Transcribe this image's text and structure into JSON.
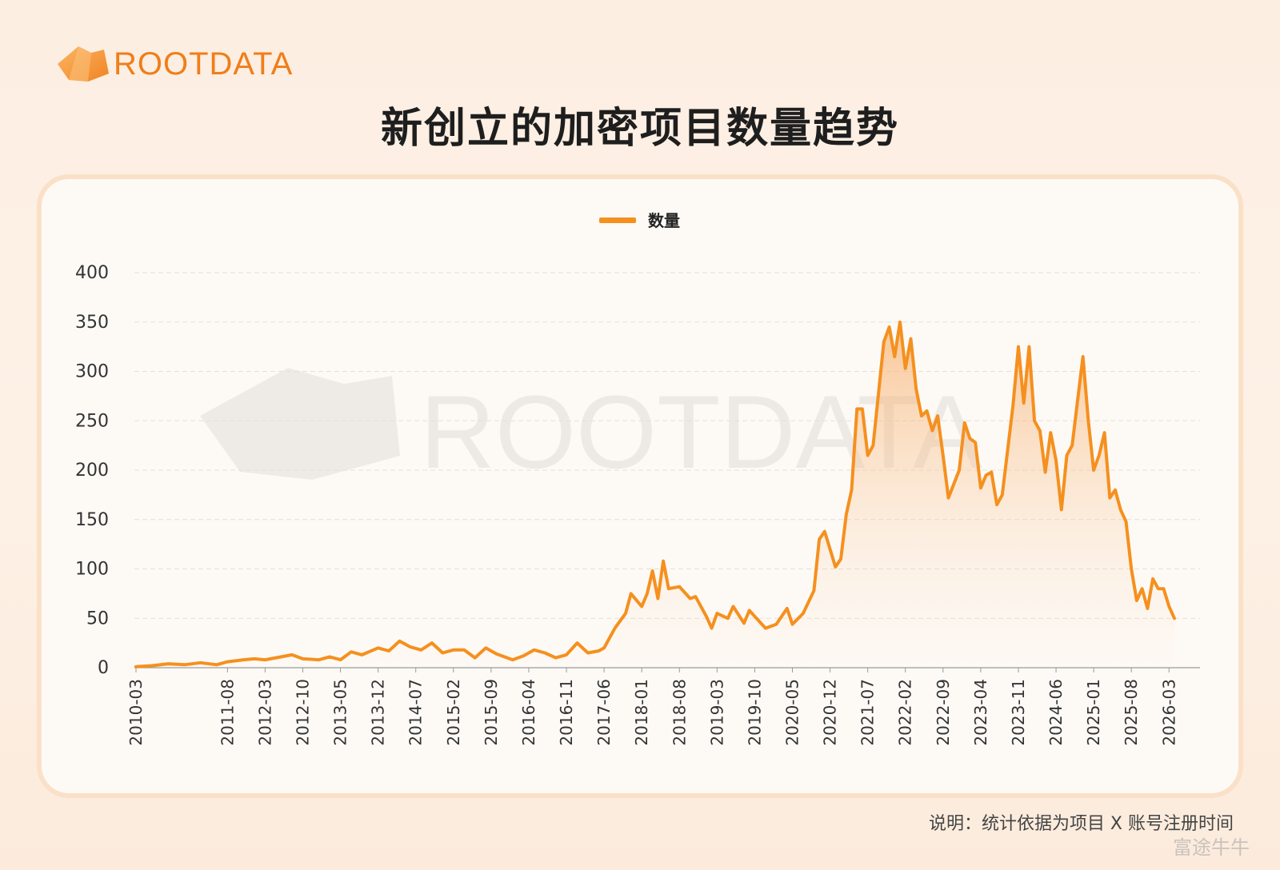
{
  "brand": {
    "logo_text": "ROOTDATA",
    "color": "#f07e19"
  },
  "title": "新创立的加密项目数量趋势",
  "note": "说明：统计依据为项目 X 账号注册时间",
  "watermark": "富途牛牛",
  "chart_data": {
    "type": "line",
    "title": "新创立的加密项目数量趋势",
    "xlabel": "",
    "ylabel": "",
    "ylim": [
      0,
      400
    ],
    "yticks": [
      0,
      50,
      100,
      150,
      200,
      250,
      300,
      350,
      400
    ],
    "legend": "top-center",
    "grid": true,
    "line_color": "#f5901e",
    "x_tick_labels": [
      "2010-03",
      "2011-08",
      "2012-03",
      "2012-10",
      "2013-05",
      "2013-12",
      "2014-07",
      "2015-02",
      "2015-09",
      "2016-04",
      "2016-11",
      "2017-06",
      "2018-01",
      "2018-08",
      "2019-03",
      "2019-10",
      "2020-05",
      "2020-12",
      "2021-07",
      "2022-02",
      "2022-09",
      "2023-04",
      "2023-11",
      "2024-06",
      "2025-01",
      "2025-08",
      "2026-03"
    ],
    "series": [
      {
        "name": "数量",
        "points": [
          [
            "2010-03",
            1
          ],
          [
            "2010-06",
            2
          ],
          [
            "2010-09",
            4
          ],
          [
            "2010-12",
            3
          ],
          [
            "2011-03",
            5
          ],
          [
            "2011-06",
            3
          ],
          [
            "2011-08",
            6
          ],
          [
            "2011-11",
            8
          ],
          [
            "2012-01",
            9
          ],
          [
            "2012-03",
            8
          ],
          [
            "2012-06",
            11
          ],
          [
            "2012-08",
            13
          ],
          [
            "2012-10",
            9
          ],
          [
            "2013-01",
            8
          ],
          [
            "2013-03",
            11
          ],
          [
            "2013-05",
            8
          ],
          [
            "2013-07",
            16
          ],
          [
            "2013-09",
            13
          ],
          [
            "2013-12",
            20
          ],
          [
            "2014-02",
            17
          ],
          [
            "2014-04",
            27
          ],
          [
            "2014-06",
            21
          ],
          [
            "2014-08",
            18
          ],
          [
            "2014-10",
            25
          ],
          [
            "2014-12",
            15
          ],
          [
            "2015-02",
            18
          ],
          [
            "2015-04",
            18
          ],
          [
            "2015-06",
            10
          ],
          [
            "2015-08",
            20
          ],
          [
            "2015-10",
            14
          ],
          [
            "2016-01",
            8
          ],
          [
            "2016-03",
            12
          ],
          [
            "2016-05",
            18
          ],
          [
            "2016-07",
            15
          ],
          [
            "2016-09",
            10
          ],
          [
            "2016-11",
            13
          ],
          [
            "2017-01",
            25
          ],
          [
            "2017-03",
            15
          ],
          [
            "2017-05",
            17
          ],
          [
            "2017-06",
            20
          ],
          [
            "2017-07",
            30
          ],
          [
            "2017-08",
            40
          ],
          [
            "2017-10",
            55
          ],
          [
            "2017-11",
            75
          ],
          [
            "2018-01",
            62
          ],
          [
            "2018-02",
            75
          ],
          [
            "2018-03",
            98
          ],
          [
            "2018-04",
            70
          ],
          [
            "2018-05",
            108
          ],
          [
            "2018-06",
            80
          ],
          [
            "2018-08",
            82
          ],
          [
            "2018-10",
            70
          ],
          [
            "2018-11",
            72
          ],
          [
            "2019-01",
            52
          ],
          [
            "2019-02",
            40
          ],
          [
            "2019-03",
            55
          ],
          [
            "2019-05",
            50
          ],
          [
            "2019-06",
            62
          ],
          [
            "2019-08",
            45
          ],
          [
            "2019-09",
            58
          ],
          [
            "2019-10",
            52
          ],
          [
            "2019-12",
            40
          ],
          [
            "2020-02",
            44
          ],
          [
            "2020-04",
            60
          ],
          [
            "2020-05",
            44
          ],
          [
            "2020-07",
            55
          ],
          [
            "2020-09",
            78
          ],
          [
            "2020-10",
            130
          ],
          [
            "2020-11",
            138
          ],
          [
            "2021-01",
            102
          ],
          [
            "2021-02",
            110
          ],
          [
            "2021-03",
            155
          ],
          [
            "2021-04",
            180
          ],
          [
            "2021-05",
            262
          ],
          [
            "2021-06",
            262
          ],
          [
            "2021-07",
            215
          ],
          [
            "2021-08",
            225
          ],
          [
            "2021-10",
            330
          ],
          [
            "2021-11",
            345
          ],
          [
            "2021-12",
            315
          ],
          [
            "2022-01",
            350
          ],
          [
            "2022-02",
            303
          ],
          [
            "2022-03",
            333
          ],
          [
            "2022-04",
            282
          ],
          [
            "2022-05",
            255
          ],
          [
            "2022-06",
            260
          ],
          [
            "2022-07",
            240
          ],
          [
            "2022-08",
            255
          ],
          [
            "2022-09",
            215
          ],
          [
            "2022-10",
            172
          ],
          [
            "2022-12",
            200
          ],
          [
            "2023-01",
            248
          ],
          [
            "2023-02",
            232
          ],
          [
            "2023-03",
            228
          ],
          [
            "2023-04",
            182
          ],
          [
            "2023-05",
            195
          ],
          [
            "2023-06",
            198
          ],
          [
            "2023-07",
            165
          ],
          [
            "2023-08",
            175
          ],
          [
            "2023-10",
            265
          ],
          [
            "2023-11",
            325
          ],
          [
            "2023-12",
            268
          ],
          [
            "2024-01",
            325
          ],
          [
            "2024-02",
            250
          ],
          [
            "2024-03",
            240
          ],
          [
            "2024-04",
            198
          ],
          [
            "2024-05",
            238
          ],
          [
            "2024-06",
            210
          ],
          [
            "2024-07",
            160
          ],
          [
            "2024-08",
            215
          ],
          [
            "2024-09",
            225
          ],
          [
            "2024-10",
            270
          ],
          [
            "2024-11",
            315
          ],
          [
            "2024-12",
            250
          ],
          [
            "2025-01",
            200
          ],
          [
            "2025-02",
            215
          ],
          [
            "2025-03",
            238
          ],
          [
            "2025-04",
            172
          ],
          [
            "2025-05",
            180
          ],
          [
            "2025-06",
            160
          ],
          [
            "2025-07",
            148
          ],
          [
            "2025-08",
            100
          ],
          [
            "2025-09",
            68
          ],
          [
            "2025-10",
            80
          ],
          [
            "2025-11",
            60
          ],
          [
            "2025-12",
            90
          ],
          [
            "2026-01",
            80
          ],
          [
            "2026-02",
            80
          ],
          [
            "2026-03",
            62
          ],
          [
            "2026-04",
            50
          ]
        ]
      }
    ]
  }
}
